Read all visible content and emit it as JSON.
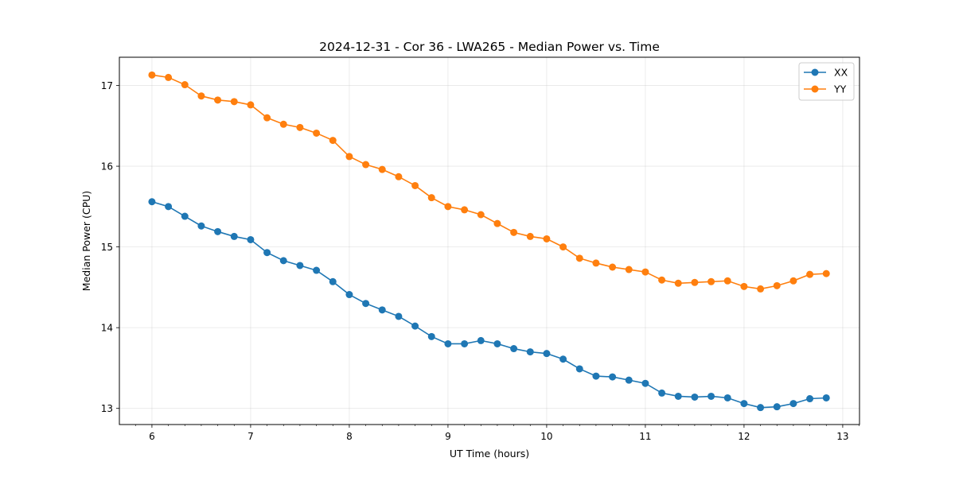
{
  "chart_data": {
    "type": "line",
    "title": "2024-12-31 - Cor 36 - LWA265 - Median Power vs. Time",
    "xlabel": "UT Time (hours)",
    "ylabel": "Median Power (CPU)",
    "xlim": [
      5.67,
      13.17
    ],
    "ylim": [
      12.8,
      17.35
    ],
    "xticks": [
      6,
      7,
      8,
      9,
      10,
      11,
      12,
      13
    ],
    "yticks": [
      13,
      14,
      15,
      16,
      17
    ],
    "grid": true,
    "legend_position": "top-right",
    "x": [
      6.0,
      6.1667,
      6.3333,
      6.5,
      6.6667,
      6.8333,
      7.0,
      7.1667,
      7.3333,
      7.5,
      7.6667,
      7.8333,
      8.0,
      8.1667,
      8.3333,
      8.5,
      8.6667,
      8.8333,
      9.0,
      9.1667,
      9.3333,
      9.5,
      9.6667,
      9.8333,
      10.0,
      10.1667,
      10.3333,
      10.5,
      10.6667,
      10.8333,
      11.0,
      11.1667,
      11.3333,
      11.5,
      11.6667,
      11.8333,
      12.0,
      12.1667,
      12.3333,
      12.5,
      12.6667,
      12.8333
    ],
    "series": [
      {
        "name": "XX",
        "color": "#1f77b4",
        "values": [
          15.56,
          15.5,
          15.38,
          15.26,
          15.19,
          15.13,
          15.09,
          14.93,
          14.83,
          14.77,
          14.71,
          14.57,
          14.41,
          14.3,
          14.22,
          14.14,
          14.02,
          13.89,
          13.8,
          13.8,
          13.84,
          13.8,
          13.74,
          13.7,
          13.68,
          13.61,
          13.49,
          13.4,
          13.39,
          13.35,
          13.31,
          13.19,
          13.15,
          13.14,
          13.15,
          13.13,
          13.06,
          13.01,
          13.02,
          13.06,
          13.12,
          13.13
        ]
      },
      {
        "name": "YY",
        "color": "#ff7f0e",
        "values": [
          17.13,
          17.1,
          17.01,
          16.87,
          16.82,
          16.8,
          16.76,
          16.6,
          16.52,
          16.48,
          16.41,
          16.32,
          16.12,
          16.02,
          15.96,
          15.87,
          15.76,
          15.61,
          15.5,
          15.46,
          15.4,
          15.29,
          15.18,
          15.13,
          15.1,
          15.0,
          14.86,
          14.8,
          14.75,
          14.72,
          14.69,
          14.59,
          14.55,
          14.56,
          14.57,
          14.58,
          14.51,
          14.48,
          14.52,
          14.58,
          14.66,
          14.67
        ]
      }
    ]
  }
}
